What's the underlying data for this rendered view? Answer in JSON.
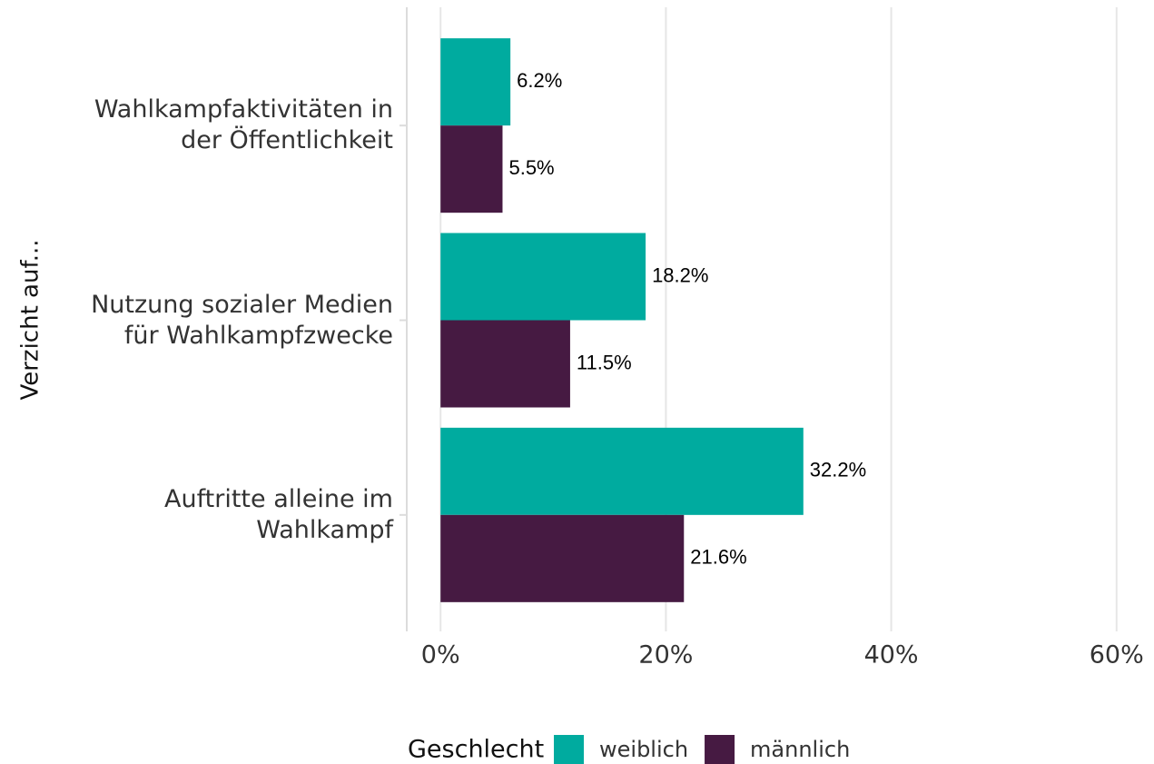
{
  "chart_data": {
    "type": "hbar",
    "categories": [
      "Wahlkampfaktivitäten in\nder Öffentlichkeit",
      "Nutzung sozialer Medien\nfür Wahlkampfzwecke",
      "Auftritte alleine im\nWahlkampf"
    ],
    "series": [
      {
        "name": "weiblich",
        "color": "#00ab9f",
        "values": [
          6.2,
          18.2,
          32.2
        ],
        "value_labels": [
          "6.2%",
          "18.2%",
          "32.2%"
        ]
      },
      {
        "name": "männlich",
        "color": "#461a42",
        "values": [
          5.5,
          11.5,
          21.6
        ],
        "value_labels": [
          "5.5%",
          "11.5%",
          "21.6%"
        ]
      }
    ],
    "ylabel": "Verzicht auf...",
    "legend_title": "Geschlecht",
    "legend": "bottom",
    "xlim": [
      -3,
      63
    ],
    "xticks": [
      {
        "value": 0,
        "label": "0%"
      },
      {
        "value": 20,
        "label": "20%"
      },
      {
        "value": 40,
        "label": "40%"
      },
      {
        "value": 60,
        "label": "60%"
      }
    ],
    "grid": true
  }
}
